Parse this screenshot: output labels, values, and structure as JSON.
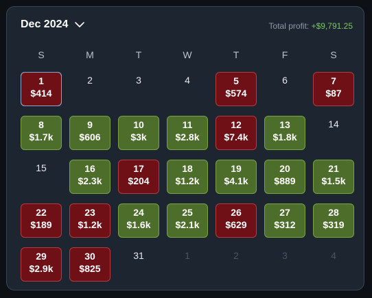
{
  "header": {
    "month_label": "Dec 2024",
    "total_profit_label": "Total profit:",
    "total_profit_value": "+$9,791.25"
  },
  "colors": {
    "profit": "#4d6e2a",
    "loss": "#6e1016",
    "profit_text": "#7fc46a"
  },
  "icons": {
    "month_dropdown": "chevron-down-icon"
  },
  "weekdays": [
    "S",
    "M",
    "T",
    "W",
    "T",
    "F",
    "S"
  ],
  "weeks": [
    [
      {
        "day": "1",
        "amount": "$414",
        "status": "neg",
        "today": true
      },
      {
        "day": "2",
        "amount": "",
        "status": "plain"
      },
      {
        "day": "3",
        "amount": "",
        "status": "plain"
      },
      {
        "day": "4",
        "amount": "",
        "status": "plain"
      },
      {
        "day": "5",
        "amount": "$574",
        "status": "neg"
      },
      {
        "day": "6",
        "amount": "",
        "status": "plain"
      },
      {
        "day": "7",
        "amount": "$87",
        "status": "neg"
      }
    ],
    [
      {
        "day": "8",
        "amount": "$1.7k",
        "status": "pos"
      },
      {
        "day": "9",
        "amount": "$606",
        "status": "pos"
      },
      {
        "day": "10",
        "amount": "$3k",
        "status": "pos"
      },
      {
        "day": "11",
        "amount": "$2.8k",
        "status": "pos"
      },
      {
        "day": "12",
        "amount": "$7.4k",
        "status": "neg"
      },
      {
        "day": "13",
        "amount": "$1.8k",
        "status": "pos"
      },
      {
        "day": "14",
        "amount": "",
        "status": "plain"
      }
    ],
    [
      {
        "day": "15",
        "amount": "",
        "status": "plain"
      },
      {
        "day": "16",
        "amount": "$2.3k",
        "status": "pos"
      },
      {
        "day": "17",
        "amount": "$204",
        "status": "neg"
      },
      {
        "day": "18",
        "amount": "$1.2k",
        "status": "pos"
      },
      {
        "day": "19",
        "amount": "$4.1k",
        "status": "pos"
      },
      {
        "day": "20",
        "amount": "$889",
        "status": "pos"
      },
      {
        "day": "21",
        "amount": "$1.5k",
        "status": "pos"
      }
    ],
    [
      {
        "day": "22",
        "amount": "$189",
        "status": "neg"
      },
      {
        "day": "23",
        "amount": "$1.2k",
        "status": "neg"
      },
      {
        "day": "24",
        "amount": "$1.6k",
        "status": "pos"
      },
      {
        "day": "25",
        "amount": "$2.1k",
        "status": "pos"
      },
      {
        "day": "26",
        "amount": "$629",
        "status": "neg"
      },
      {
        "day": "27",
        "amount": "$312",
        "status": "pos"
      },
      {
        "day": "28",
        "amount": "$319",
        "status": "pos"
      }
    ],
    [
      {
        "day": "29",
        "amount": "$2.9k",
        "status": "neg"
      },
      {
        "day": "30",
        "amount": "$825",
        "status": "neg"
      },
      {
        "day": "31",
        "amount": "",
        "status": "plain"
      },
      {
        "day": "1",
        "amount": "",
        "status": "other"
      },
      {
        "day": "2",
        "amount": "",
        "status": "other"
      },
      {
        "day": "3",
        "amount": "",
        "status": "other"
      },
      {
        "day": "4",
        "amount": "",
        "status": "other"
      }
    ]
  ]
}
